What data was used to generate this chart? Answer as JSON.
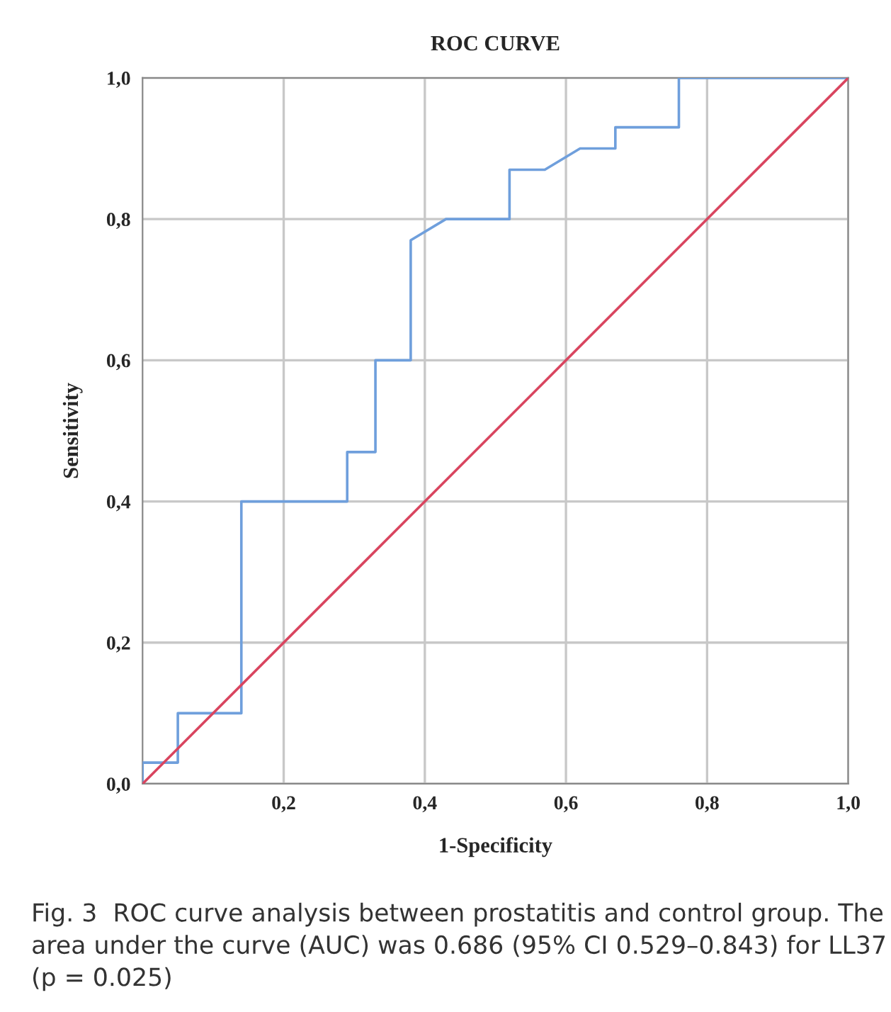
{
  "chart_data": {
    "type": "line",
    "title": "ROC CURVE",
    "xlabel": "1-Specificity",
    "ylabel": "Sensitivity",
    "series": [
      {
        "color": "#6f9fdc",
        "x": [
          0,
          0,
          0.05,
          0.05,
          0.14,
          0.14,
          0.29,
          0.29,
          0.33,
          0.33,
          0.38,
          0.38,
          0.43,
          0.52,
          0.52,
          0.57,
          0.62,
          0.67,
          0.67,
          0.76,
          0.76,
          1.0
        ],
        "values": [
          0,
          0.03,
          0.03,
          0.1,
          0.1,
          0.4,
          0.4,
          0.47,
          0.47,
          0.6,
          0.6,
          0.77,
          0.8,
          0.8,
          0.87,
          0.87,
          0.9,
          0.9,
          0.93,
          0.93,
          1.0,
          1.0
        ]
      },
      {
        "color": "#d9455f",
        "x": [
          0,
          1.0
        ],
        "values": [
          0,
          1.0
        ]
      }
    ],
    "xlim": [
      0,
      1.0
    ],
    "ylim": [
      0,
      1.0
    ],
    "xticks": [
      {
        "value": 0.2,
        "label": "0,2"
      },
      {
        "value": 0.4,
        "label": "0,4"
      },
      {
        "value": 0.6,
        "label": "0,6"
      },
      {
        "value": 0.8,
        "label": "0,8"
      },
      {
        "value": 1.0,
        "label": "1,0"
      }
    ],
    "yticks": [
      {
        "value": 0,
        "label": "0,0"
      },
      {
        "value": 0.2,
        "label": "0,2"
      },
      {
        "value": 0.4,
        "label": "0,4"
      },
      {
        "value": 0.6,
        "label": "0,6"
      },
      {
        "value": 0.8,
        "label": "0,8"
      },
      {
        "value": 1.0,
        "label": "1,0"
      }
    ],
    "grid": true,
    "line_style": "solid",
    "marker": "none",
    "annotations": [
      "Fig. 3  ROC curve analysis between prostatitis and control group. The area under the curve (AUC) was 0.686 (95% CI 0.529–0.843) for LL37 (p = 0.025)"
    ]
  }
}
